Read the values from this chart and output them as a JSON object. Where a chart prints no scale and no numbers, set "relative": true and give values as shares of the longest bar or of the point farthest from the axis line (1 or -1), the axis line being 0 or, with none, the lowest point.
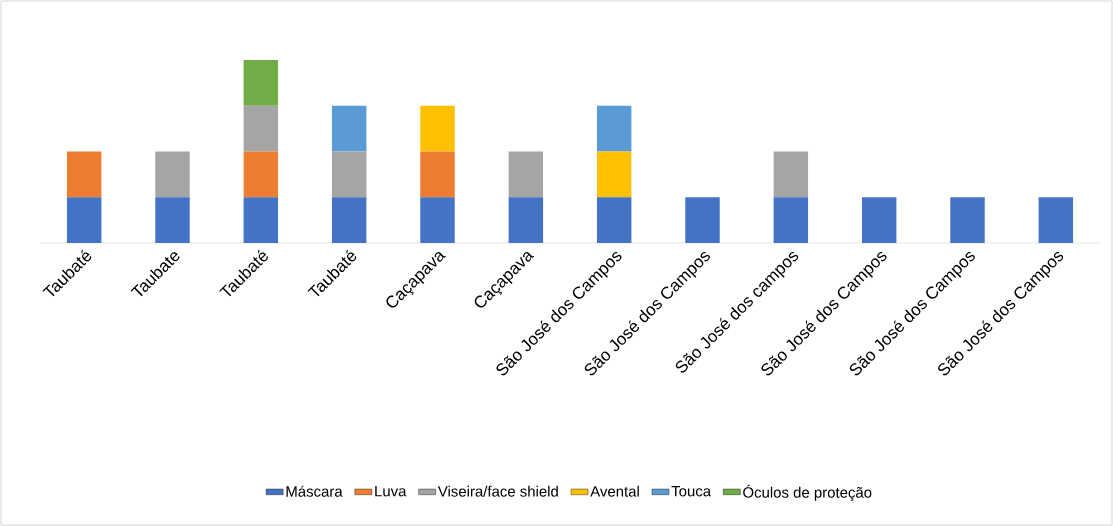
{
  "chart_data": {
    "type": "bar",
    "stacked": true,
    "relative": true,
    "legend": "bottom",
    "categories": [
      "Taubaté",
      "Taubate",
      "Taubaté",
      "Taubaté",
      "Caçapava",
      "Caçapava",
      "São José dos Campos",
      "São José dos Campos",
      "São José dos campos",
      "São José dos Campos",
      "São José dos Campos",
      "São José dos Campos"
    ],
    "series": [
      {
        "name": "Máscara",
        "color": "#4472c4",
        "values": [
          0.25,
          0.25,
          0.25,
          0.25,
          0.25,
          0.25,
          0.25,
          0.25,
          0.25,
          0.25,
          0.25,
          0.25
        ]
      },
      {
        "name": "Luva",
        "color": "#ed7d31",
        "values": [
          0.25,
          0,
          0.25,
          0,
          0.25,
          0,
          0,
          0,
          0,
          0,
          0,
          0
        ]
      },
      {
        "name": "Viseira/face shield",
        "color": "#a5a5a5",
        "values": [
          0,
          0.25,
          0.25,
          0.25,
          0,
          0.25,
          0,
          0,
          0.25,
          0,
          0,
          0
        ]
      },
      {
        "name": "Avental",
        "color": "#ffc000",
        "values": [
          0,
          0,
          0,
          0,
          0.25,
          0,
          0.25,
          0,
          0,
          0,
          0,
          0
        ]
      },
      {
        "name": "Touca",
        "color": "#5b9bd5",
        "values": [
          0,
          0,
          0,
          0.25,
          0,
          0,
          0.25,
          0,
          0,
          0,
          0,
          0
        ]
      },
      {
        "name": "Óculos de proteção",
        "color": "#70ad47",
        "values": [
          0,
          0,
          0.25,
          0,
          0,
          0,
          0,
          0,
          0,
          0,
          0,
          0
        ]
      }
    ]
  }
}
